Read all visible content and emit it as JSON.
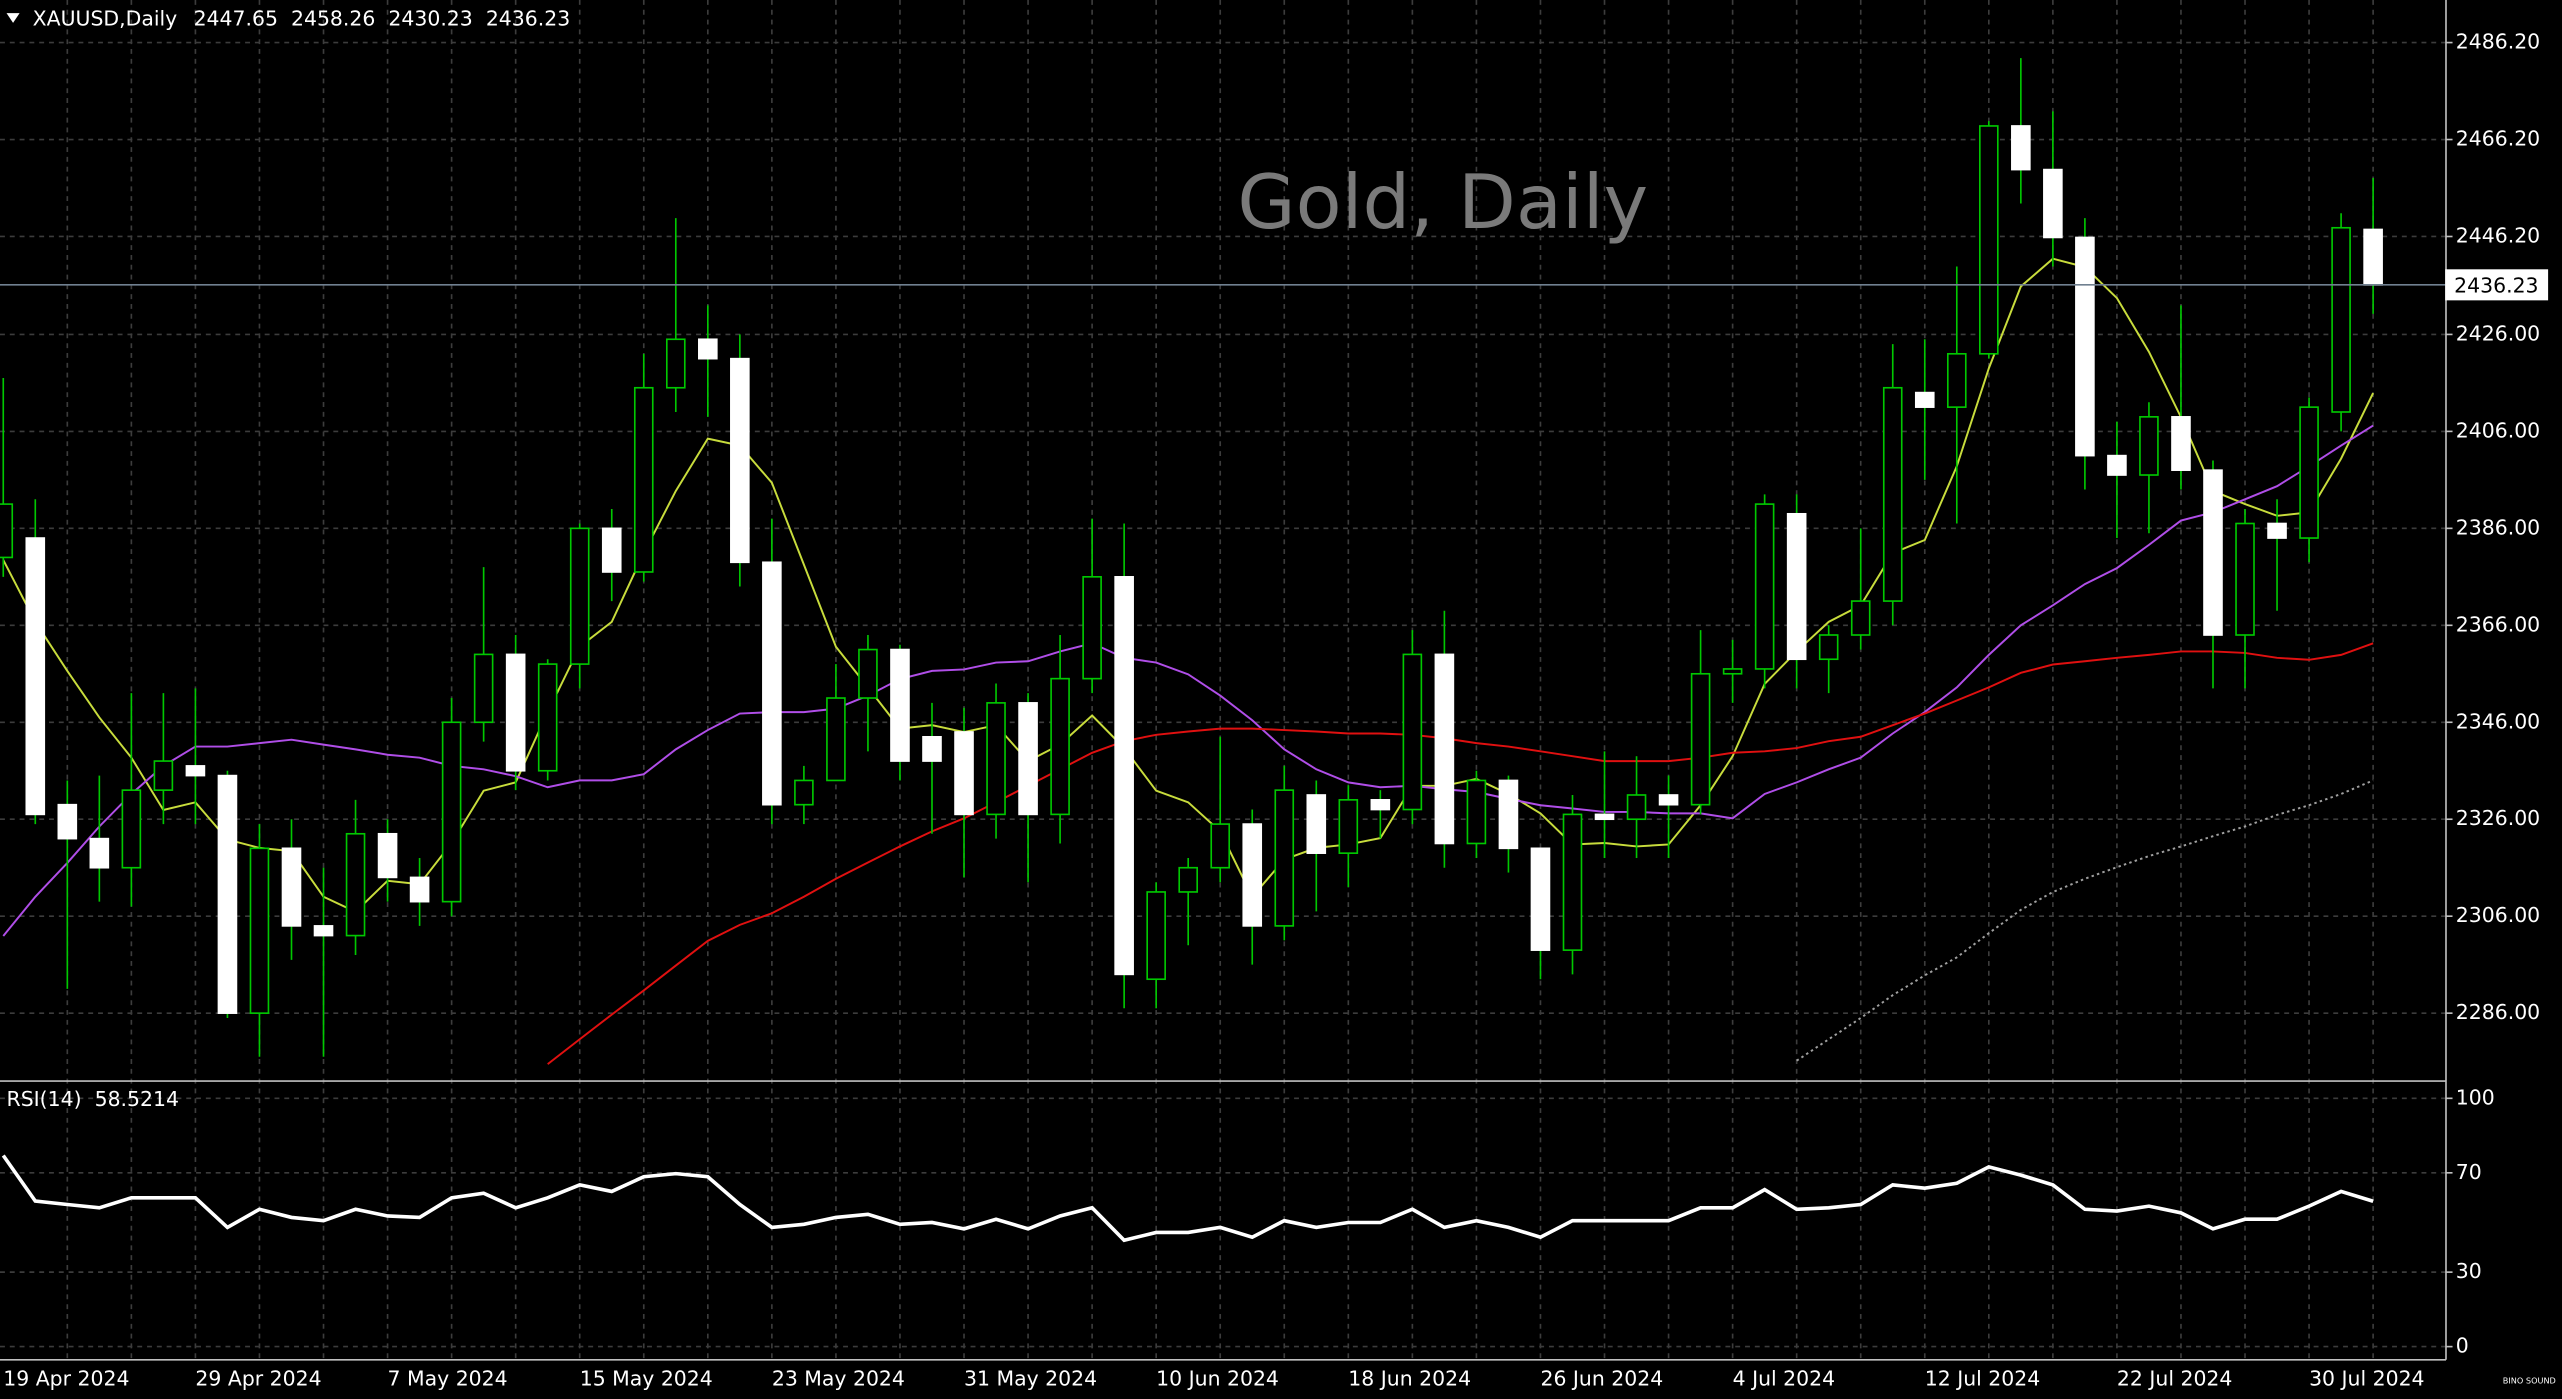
{
  "chart_data": [
    {
      "type": "candlestick",
      "title": "XAUUSD,Daily",
      "watermark": "Gold, Daily",
      "logo": "BINO SOUND",
      "categories": [
        "19 Apr 2024",
        null,
        null,
        null,
        null,
        null,
        "29 Apr 2024",
        null,
        null,
        null,
        null,
        null,
        "7 May 2024",
        null,
        null,
        null,
        null,
        null,
        "15 May 2024",
        null,
        null,
        null,
        null,
        null,
        "23 May 2024",
        null,
        null,
        null,
        null,
        null,
        "31 May 2024",
        null,
        null,
        null,
        null,
        null,
        "10 Jun 2024",
        null,
        null,
        null,
        null,
        null,
        "18 Jun 2024",
        null,
        null,
        null,
        null,
        null,
        "26 Jun 2024",
        null,
        null,
        null,
        null,
        null,
        "4 Jul 2024",
        null,
        null,
        null,
        null,
        null,
        "12 Jul 2024",
        null,
        null,
        null,
        null,
        null,
        "22 Jul 2024",
        null,
        null,
        null,
        null,
        null,
        "30 Jul 2024",
        null,
        null
      ],
      "open": [
        2380,
        2384,
        2329,
        2322,
        2316,
        2332,
        2337,
        2335,
        2286,
        2320,
        2304,
        2302,
        2323,
        2314,
        2309,
        2346,
        2360,
        2336,
        2358,
        2386,
        2377,
        2415,
        2425,
        2421,
        2379,
        2329,
        2334,
        2351,
        2361,
        2343,
        2344,
        2327,
        2350,
        2327,
        2355,
        2376,
        2293,
        2311,
        2316,
        2325,
        2304,
        2331,
        2319,
        2330,
        2328,
        2360,
        2321,
        2334,
        2320,
        2299,
        2327,
        2326,
        2331,
        2329,
        2356,
        2357,
        2389,
        2359,
        2364,
        2371,
        2414,
        2411,
        2422,
        2469,
        2460,
        2446,
        2401,
        2397,
        2409,
        2398,
        2364,
        2387,
        2384,
        2410,
        2447.65
      ],
      "high": [
        2417,
        2392,
        2334,
        2335,
        2352,
        2352,
        2353,
        2336,
        2325,
        2326,
        2316,
        2330,
        2326,
        2318,
        2351,
        2378,
        2364,
        2359,
        2387,
        2390,
        2422,
        2450,
        2432,
        2426,
        2388,
        2337,
        2358,
        2364,
        2362,
        2350,
        2349,
        2354,
        2352,
        2364,
        2388,
        2387,
        2313,
        2318,
        2343,
        2328,
        2337,
        2334,
        2333,
        2332,
        2365,
        2369,
        2336,
        2335,
        2320,
        2331,
        2340,
        2339,
        2335,
        2365,
        2363,
        2393,
        2393,
        2366,
        2386,
        2424,
        2425,
        2440,
        2470,
        2483,
        2472,
        2450,
        2408,
        2412,
        2432,
        2400,
        2390,
        2392,
        2413,
        2451,
        2458.26
      ],
      "low": [
        2376,
        2325,
        2291,
        2309,
        2308,
        2325,
        2325,
        2285,
        2277,
        2297,
        2277,
        2298,
        2309,
        2304,
        2306,
        2342,
        2332,
        2334,
        2353,
        2371,
        2375,
        2410,
        2409,
        2374,
        2325,
        2325,
        2334,
        2340,
        2334,
        2323,
        2314,
        2322,
        2313,
        2321,
        2352,
        2287,
        2287,
        2300,
        2313,
        2296,
        2301,
        2307,
        2312,
        2322,
        2325,
        2316,
        2318,
        2315,
        2293,
        2294,
        2318,
        2318,
        2318,
        2327,
        2350,
        2353,
        2353,
        2352,
        2361,
        2366,
        2396,
        2387,
        2421,
        2453,
        2440,
        2394,
        2384,
        2385,
        2394,
        2353,
        2353,
        2369,
        2379,
        2406,
        2430.23
      ],
      "close": [
        2391,
        2327,
        2322,
        2316,
        2332,
        2338,
        2335,
        2286,
        2320,
        2304,
        2302,
        2323,
        2314,
        2309,
        2346,
        2360,
        2336,
        2358,
        2386,
        2377,
        2415,
        2425,
        2421,
        2379,
        2329,
        2334,
        2351,
        2361,
        2338,
        2338,
        2327,
        2350,
        2327,
        2355,
        2376,
        2294,
        2311,
        2316,
        2325,
        2304,
        2332,
        2319,
        2330,
        2328,
        2360,
        2321,
        2334,
        2320,
        2299,
        2327,
        2326,
        2331,
        2329,
        2356,
        2357,
        2391,
        2359,
        2364,
        2371,
        2415,
        2411,
        2422,
        2469,
        2460,
        2446,
        2401,
        2397,
        2409,
        2398,
        2364,
        2387,
        2384,
        2411,
        2448,
        2436.23
      ],
      "up_color": "#00c800",
      "up_fill": "#000000",
      "down_color": "#ffffff",
      "down_fill": "#ffffff",
      "wick_color": "#00c800",
      "overlays": [
        {
          "color": "#c8dc3c",
          "style": "solid",
          "values": [
            2379.5,
            2366.7,
            2356.6,
            2347,
            2338.7,
            2327.9,
            2329.5,
            2321.8,
            2320.1,
            2319.4,
            2310,
            2306.9,
            2313.3,
            2312.6,
            2321.1,
            2331.9,
            2333.6,
            2348.1,
            2361.6,
            2366.7,
            2380.9,
            2393.7,
            2404.5,
            2403.1,
            2395.4,
            2378.5,
            2361.6,
            2353.2,
            2344.7,
            2345.4,
            2344,
            2345.4,
            2338,
            2341.4,
            2347.4,
            2340.7,
            2331.9,
            2329.5,
            2323.5,
            2310,
            2317.7,
            2320.1,
            2320.8,
            2322.1,
            2332.9,
            2332.9,
            2334.3,
            2331.2,
            2327.2,
            2320.8,
            2321.1,
            2320.4,
            2320.8,
            2328.9,
            2339,
            2353.9,
            2360.6,
            2366.7,
            2370.1,
            2380.9,
            2383.6,
            2398.8,
            2419,
            2435.9,
            2441.6,
            2439.9,
            2433.5,
            2422.4,
            2408.9,
            2393.7,
            2391,
            2388.6,
            2389.3,
            2400.4,
            2413.9
          ]
        },
        {
          "color": "#b04ee8",
          "style": "solid",
          "values": [
            2301.9,
            2310,
            2317,
            2324.5,
            2331.2,
            2337,
            2341,
            2341,
            2341.7,
            2342.4,
            2341.4,
            2340.4,
            2339.3,
            2338.7,
            2337,
            2336.3,
            2334.9,
            2332.6,
            2334,
            2334,
            2335.3,
            2340.4,
            2344.4,
            2347.8,
            2348.1,
            2348.1,
            2348.8,
            2351.5,
            2354.9,
            2356.6,
            2356.9,
            2358.3,
            2358.6,
            2360.6,
            2362.3,
            2359.3,
            2358.3,
            2355.9,
            2351.5,
            2346.4,
            2340.4,
            2336.3,
            2333.6,
            2332.6,
            2332.9,
            2332.2,
            2331.6,
            2330.2,
            2328.9,
            2328.2,
            2327.5,
            2327.5,
            2327.2,
            2327.2,
            2326.2,
            2331.2,
            2333.6,
            2336.3,
            2338.7,
            2343.7,
            2348.1,
            2353.2,
            2359.9,
            2366,
            2370.1,
            2374.5,
            2377.8,
            2382.6,
            2387.6,
            2389.3,
            2392,
            2394.7,
            2398.8,
            2403.1,
            2407.2
          ]
        },
        {
          "color": "#e01010",
          "style": "solid",
          "values": [
            null,
            null,
            null,
            null,
            null,
            null,
            null,
            null,
            null,
            null,
            null,
            null,
            null,
            null,
            null,
            null,
            null,
            2275.5,
            2280.6,
            2285.7,
            2290.7,
            2295.8,
            2300.9,
            2304.2,
            2306.6,
            2310,
            2313.7,
            2317.1,
            2320.4,
            2323.5,
            2326.2,
            2329.5,
            2332.9,
            2336.3,
            2339.7,
            2342.1,
            2343.4,
            2344.1,
            2344.7,
            2344.7,
            2344.4,
            2344.1,
            2343.7,
            2343.7,
            2343.4,
            2342.7,
            2341.7,
            2341,
            2340,
            2339,
            2338,
            2338,
            2338,
            2338.7,
            2339.7,
            2340,
            2340.7,
            2342.1,
            2343,
            2345.4,
            2347.8,
            2350.5,
            2353.2,
            2356.2,
            2357.9,
            2358.6,
            2359.3,
            2359.9,
            2360.6,
            2360.6,
            2360.3,
            2359.3,
            2358.9,
            2359.9,
            2362.3
          ]
        },
        {
          "color": "#a0a0a0",
          "style": "dotted",
          "values": [
            null,
            null,
            null,
            null,
            null,
            null,
            null,
            null,
            null,
            null,
            null,
            null,
            null,
            null,
            null,
            null,
            null,
            null,
            null,
            null,
            null,
            null,
            null,
            null,
            null,
            null,
            null,
            null,
            null,
            null,
            null,
            null,
            null,
            null,
            null,
            null,
            null,
            null,
            null,
            null,
            null,
            null,
            null,
            null,
            null,
            null,
            null,
            null,
            null,
            null,
            null,
            null,
            null,
            null,
            null,
            null,
            2276.2,
            2280.6,
            2285,
            2289.7,
            2293.8,
            2297.5,
            2302.5,
            2307.3,
            2311,
            2313.7,
            2316.1,
            2318.4,
            2320.4,
            2322.5,
            2324.5,
            2326.9,
            2328.9,
            2331.2,
            2334
          ]
        }
      ],
      "ylim": [
        2272.15,
        2494.98
      ],
      "yticks": [
        {
          "value": 2486.2,
          "label": "2486.20"
        },
        {
          "value": 2466.2,
          "label": "2466.20"
        },
        {
          "value": 2446.2,
          "label": "2446.20"
        },
        {
          "value": 2426,
          "label": "2426.00"
        },
        {
          "value": 2406,
          "label": "2406.00"
        },
        {
          "value": 2386,
          "label": "2386.00"
        },
        {
          "value": 2366,
          "label": "2366.00"
        },
        {
          "value": 2346,
          "label": "2346.00"
        },
        {
          "value": 2326,
          "label": "2326.00"
        },
        {
          "value": 2306,
          "label": "2306.00"
        },
        {
          "value": 2286,
          "label": "2286.00"
        }
      ],
      "grid": true
    },
    {
      "type": "line",
      "title": "RSI(14)",
      "color": "#ffffff",
      "values": [
        77,
        58.6,
        57.2,
        55.9,
        59.9,
        59.9,
        59.9,
        48,
        55.3,
        52,
        50.7,
        55.3,
        52.6,
        52,
        59.9,
        61.8,
        55.9,
        59.9,
        65.1,
        62.5,
        68.4,
        69.7,
        68.4,
        57.2,
        48,
        49.3,
        52,
        53.3,
        49.3,
        50,
        47.4,
        51.3,
        47.4,
        52.6,
        55.9,
        42.8,
        46,
        46,
        48,
        44.1,
        50.7,
        48,
        50,
        50,
        55.3,
        48,
        50.7,
        48,
        44.1,
        50.7,
        50.7,
        50.7,
        50.7,
        55.9,
        55.9,
        63.2,
        55.3,
        55.9,
        57.2,
        65.1,
        63.8,
        65.8,
        72.4,
        69.1,
        65.1,
        55.3,
        54.6,
        56.6,
        53.9,
        47.4,
        51.3,
        51.3,
        56.6,
        62.5,
        58.5214
      ],
      "ylim": [
        -5.3,
        106.6
      ],
      "yticks": [
        100,
        70,
        30,
        0
      ],
      "grid": true
    }
  ]
}
